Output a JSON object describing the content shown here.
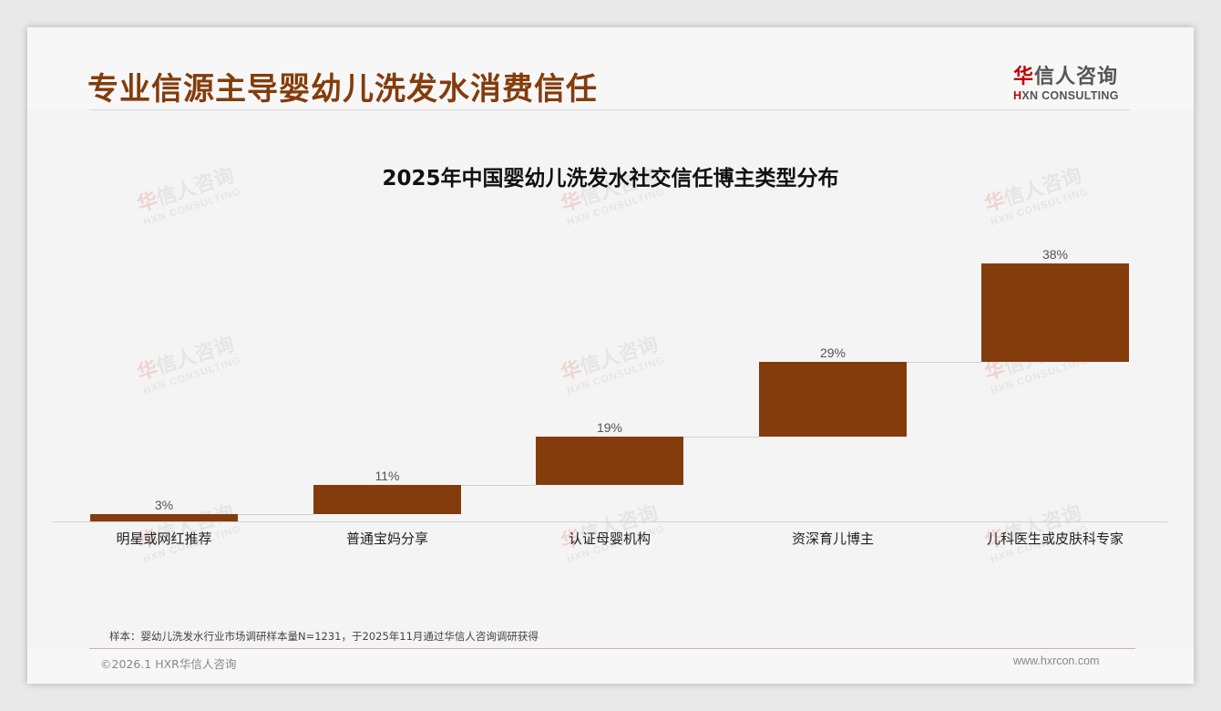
{
  "header": {
    "title": "专业信源主导婴幼儿洗发水消费信任",
    "logo_cn_accent": "华",
    "logo_cn_rest": "信人咨询",
    "logo_en_accent": "H",
    "logo_en_rest": "XN CONSULTING"
  },
  "watermark": {
    "cn_accent": "华",
    "cn_rest": "信人咨询",
    "en": "HXN CONSULTING"
  },
  "chart_data": {
    "type": "bar",
    "subtype": "waterfall",
    "title": "2025年中国婴幼儿洗发水社交信任博主类型分布",
    "categories": [
      "明星或网红推荐",
      "普通宝妈分享",
      "认证母婴机构",
      "资深育儿博主",
      "儿科医生或皮肤科专家"
    ],
    "values": [
      3,
      11,
      19,
      29,
      38
    ],
    "value_labels": [
      "3%",
      "11%",
      "19%",
      "29%",
      "38%"
    ],
    "xlabel": "",
    "ylabel": "",
    "ylim": [
      0,
      100
    ],
    "grid": false,
    "legend": "none",
    "bar_color": "#843c0c"
  },
  "footer": {
    "note": "样本：婴幼儿洗发水行业市场调研样本量N=1231，于2025年11月通过华信人咨询调研获得",
    "copyright": "©2026.1 HXR华信人咨询",
    "website": "www.hxrcon.com"
  }
}
